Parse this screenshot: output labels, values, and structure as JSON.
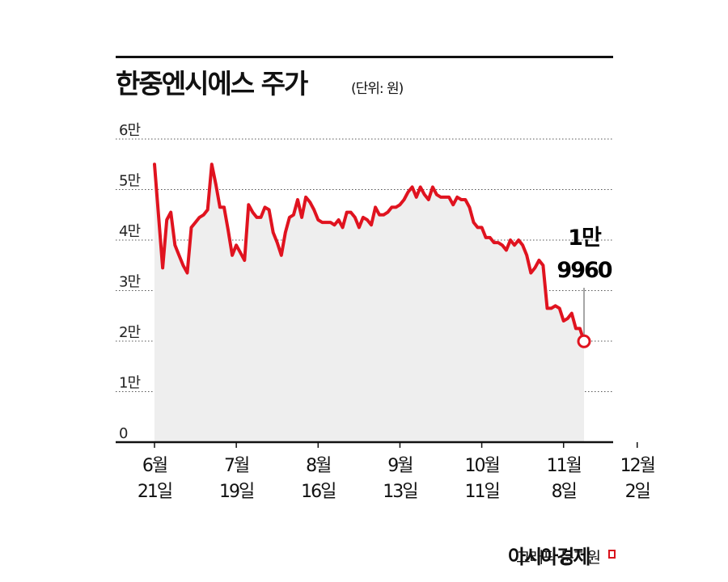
{
  "header": {
    "title": "한중엔시에스 주가",
    "unit": "(단위: 원)"
  },
  "footer": {
    "credit": "그래픽 문지원",
    "brand": "아시아경제"
  },
  "colors": {
    "line": "#e0131f",
    "area": "#eeeeee",
    "axis": "#111111",
    "grid": "#555555"
  },
  "chart_data": {
    "type": "line",
    "title": "한중엔시에스 주가",
    "unit_label": "(단위: 원)",
    "ylim": [
      0,
      60000
    ],
    "y_ticks": [
      {
        "value": 0,
        "label": "0"
      },
      {
        "value": 10000,
        "label": "1만"
      },
      {
        "value": 20000,
        "label": "2만"
      },
      {
        "value": 30000,
        "label": "3만"
      },
      {
        "value": 40000,
        "label": "4만"
      },
      {
        "value": 50000,
        "label": "5만"
      },
      {
        "value": 60000,
        "label": "6만"
      }
    ],
    "x_ticks": [
      {
        "x": 0,
        "month": "6월",
        "day": "21일"
      },
      {
        "x": 20,
        "month": "7월",
        "day": "19일"
      },
      {
        "x": 40,
        "month": "8월",
        "day": "16일"
      },
      {
        "x": 60,
        "month": "9월",
        "day": "13일"
      },
      {
        "x": 80,
        "month": "10월",
        "day": "11일"
      },
      {
        "x": 100,
        "month": "11월",
        "day": "8일"
      },
      {
        "x": 118,
        "month": "12월",
        "day": "2일"
      }
    ],
    "grid": true,
    "area_fill": true,
    "series": [
      {
        "values": [
          [
            0,
            55000
          ],
          [
            2,
            34500
          ],
          [
            3,
            44000
          ],
          [
            4,
            45500
          ],
          [
            5,
            39000
          ],
          [
            6,
            37000
          ],
          [
            7,
            35000
          ],
          [
            8,
            33500
          ],
          [
            9,
            42500
          ],
          [
            10,
            43500
          ],
          [
            11,
            44500
          ],
          [
            12,
            45000
          ],
          [
            13,
            46000
          ],
          [
            14,
            55000
          ],
          [
            15,
            51000
          ],
          [
            16,
            46500
          ],
          [
            17,
            46500
          ],
          [
            18,
            42000
          ],
          [
            19,
            37000
          ],
          [
            20,
            39000
          ],
          [
            21,
            37500
          ],
          [
            22,
            36000
          ],
          [
            23,
            47000
          ],
          [
            24,
            45500
          ],
          [
            25,
            44500
          ],
          [
            26,
            44500
          ],
          [
            27,
            46500
          ],
          [
            28,
            46000
          ],
          [
            29,
            41500
          ],
          [
            30,
            39500
          ],
          [
            31,
            37000
          ],
          [
            32,
            41500
          ],
          [
            33,
            44500
          ],
          [
            34,
            45000
          ],
          [
            35,
            48000
          ],
          [
            36,
            44500
          ],
          [
            37,
            48500
          ],
          [
            38,
            47500
          ],
          [
            39,
            46000
          ],
          [
            40,
            44000
          ],
          [
            41,
            43500
          ],
          [
            42,
            43500
          ],
          [
            43,
            43500
          ],
          [
            44,
            43000
          ],
          [
            45,
            44000
          ],
          [
            46,
            42500
          ],
          [
            47,
            45500
          ],
          [
            48,
            45500
          ],
          [
            49,
            44500
          ],
          [
            50,
            42500
          ],
          [
            51,
            44500
          ],
          [
            52,
            44000
          ],
          [
            53,
            43000
          ],
          [
            54,
            46500
          ],
          [
            55,
            45000
          ],
          [
            56,
            45000
          ],
          [
            57,
            45500
          ],
          [
            58,
            46500
          ],
          [
            59,
            46500
          ],
          [
            60,
            47000
          ],
          [
            61,
            48000
          ],
          [
            62,
            49500
          ],
          [
            63,
            50500
          ],
          [
            64,
            48500
          ],
          [
            65,
            50500
          ],
          [
            66,
            49000
          ],
          [
            67,
            48000
          ],
          [
            68,
            50500
          ],
          [
            69,
            49000
          ],
          [
            70,
            48500
          ],
          [
            71,
            48500
          ],
          [
            72,
            48500
          ],
          [
            73,
            47000
          ],
          [
            74,
            48500
          ],
          [
            75,
            48000
          ],
          [
            76,
            48000
          ],
          [
            77,
            46500
          ],
          [
            78,
            43500
          ],
          [
            79,
            42500
          ],
          [
            80,
            42500
          ],
          [
            81,
            40500
          ],
          [
            82,
            40500
          ],
          [
            83,
            39500
          ],
          [
            84,
            39500
          ],
          [
            85,
            39000
          ],
          [
            86,
            38000
          ],
          [
            87,
            40000
          ],
          [
            88,
            39000
          ],
          [
            89,
            40000
          ],
          [
            90,
            39000
          ],
          [
            91,
            37000
          ],
          [
            92,
            33500
          ],
          [
            93,
            34500
          ],
          [
            94,
            36000
          ],
          [
            95,
            35000
          ],
          [
            96,
            26500
          ],
          [
            97,
            26500
          ],
          [
            98,
            27000
          ],
          [
            99,
            26500
          ],
          [
            100,
            24000
          ],
          [
            101,
            24500
          ],
          [
            102,
            25500
          ],
          [
            103,
            22500
          ],
          [
            104,
            22500
          ],
          [
            105,
            20000
          ]
        ]
      }
    ],
    "annotation": {
      "line1": "1만",
      "line2": "9960",
      "x": 105,
      "value": 19960
    }
  }
}
